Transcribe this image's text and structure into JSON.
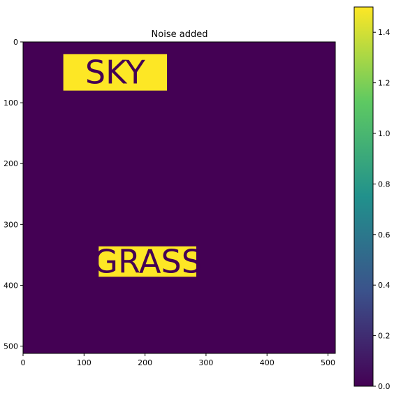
{
  "chart_data": {
    "type": "heatmap",
    "title": "Noise added",
    "xlabel": "",
    "ylabel": "",
    "xlim": [
      0,
      512
    ],
    "ylim": [
      512,
      0
    ],
    "x_ticks": [
      0,
      100,
      200,
      300,
      400,
      500
    ],
    "y_ticks": [
      0,
      100,
      200,
      300,
      400,
      500
    ],
    "background_value": 0.0,
    "colormap": "viridis",
    "colormap_stops": [
      "#440154",
      "#3b528b",
      "#21918c",
      "#5ec962",
      "#fde725"
    ],
    "colorbar": {
      "range": [
        0.0,
        1.5
      ],
      "ticks": [
        "0.0",
        "0.2",
        "0.4",
        "0.6",
        "0.8",
        "1.0",
        "1.2",
        "1.4"
      ]
    },
    "regions": [
      {
        "label": "SKY",
        "value": 1.5,
        "x": [
          66,
          236
        ],
        "y": [
          20,
          80
        ]
      },
      {
        "label": "GRASS",
        "value": 1.5,
        "x": [
          124,
          284
        ],
        "y": [
          336,
          386
        ]
      }
    ],
    "grid": false
  }
}
